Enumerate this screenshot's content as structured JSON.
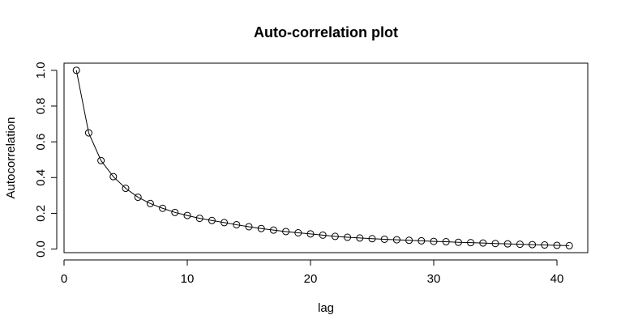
{
  "chart_data": {
    "type": "line",
    "title": "Auto-correlation plot",
    "xlabel": "lag",
    "ylabel": "Autocorrelation",
    "xlim": [
      0,
      42.5
    ],
    "ylim": [
      -0.02,
      1.04
    ],
    "xticks": [
      0,
      10,
      20,
      30,
      40
    ],
    "yticks": [
      0.0,
      0.2,
      0.4,
      0.6,
      0.8,
      1.0
    ],
    "xtick_labels": [
      "0",
      "10",
      "20",
      "30",
      "40"
    ],
    "ytick_labels": [
      "0.0",
      "0.2",
      "0.4",
      "0.6",
      "0.8",
      "1.0"
    ],
    "grid": false,
    "legend": "none",
    "marker": "open-circle",
    "series": [
      {
        "x": [
          1,
          2,
          3,
          4,
          5,
          6,
          7,
          8,
          9,
          10,
          11,
          12,
          13,
          14,
          15,
          16,
          17,
          18,
          19,
          20,
          21,
          22,
          23,
          24,
          25,
          26,
          27,
          28,
          29,
          30,
          31,
          32,
          33,
          34,
          35,
          36,
          37,
          38,
          39,
          40,
          41
        ],
        "values": [
          1.0,
          0.65,
          0.495,
          0.405,
          0.34,
          0.29,
          0.255,
          0.228,
          0.205,
          0.188,
          0.172,
          0.16,
          0.148,
          0.136,
          0.125,
          0.115,
          0.106,
          0.098,
          0.091,
          0.085,
          0.078,
          0.071,
          0.066,
          0.062,
          0.058,
          0.055,
          0.052,
          0.049,
          0.046,
          0.043,
          0.041,
          0.038,
          0.036,
          0.034,
          0.031,
          0.029,
          0.027,
          0.025,
          0.023,
          0.021,
          0.019
        ]
      }
    ]
  }
}
